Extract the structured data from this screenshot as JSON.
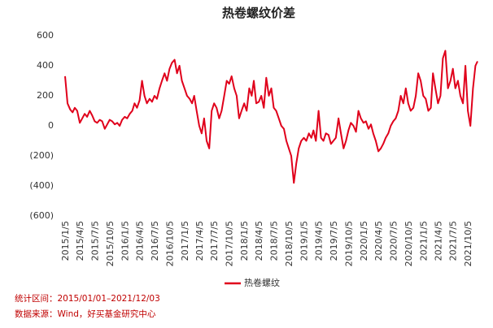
{
  "chart_data": {
    "type": "line",
    "title": "热卷螺纹价差",
    "x": [
      "2015/1/5",
      "2015/1/20",
      "2015/2/5",
      "2015/2/20",
      "2015/3/5",
      "2015/3/20",
      "2015/4/5",
      "2015/4/20",
      "2015/5/5",
      "2015/5/20",
      "2015/6/5",
      "2015/6/20",
      "2015/7/5",
      "2015/7/20",
      "2015/8/5",
      "2015/8/20",
      "2015/9/5",
      "2015/9/20",
      "2015/10/5",
      "2015/10/20",
      "2015/11/5",
      "2015/11/20",
      "2015/12/5",
      "2015/12/20",
      "2016/1/5",
      "2016/1/20",
      "2016/2/5",
      "2016/2/20",
      "2016/3/5",
      "2016/3/20",
      "2016/4/5",
      "2016/4/20",
      "2016/5/5",
      "2016/5/20",
      "2016/6/5",
      "2016/6/20",
      "2016/7/5",
      "2016/7/20",
      "2016/8/5",
      "2016/8/20",
      "2016/9/5",
      "2016/9/20",
      "2016/10/5",
      "2016/10/20",
      "2016/11/5",
      "2016/11/20",
      "2016/12/5",
      "2016/12/20",
      "2017/1/5",
      "2017/1/20",
      "2017/2/5",
      "2017/2/20",
      "2017/3/5",
      "2017/3/20",
      "2017/4/5",
      "2017/4/20",
      "2017/5/5",
      "2017/5/20",
      "2017/6/5",
      "2017/6/20",
      "2017/7/5",
      "2017/7/20",
      "2017/8/5",
      "2017/8/20",
      "2017/9/5",
      "2017/9/20",
      "2017/10/5",
      "2017/10/20",
      "2017/11/5",
      "2017/11/20",
      "2017/12/5",
      "2017/12/20",
      "2018/1/5",
      "2018/1/20",
      "2018/2/5",
      "2018/2/20",
      "2018/3/5",
      "2018/3/20",
      "2018/4/5",
      "2018/4/20",
      "2018/5/5",
      "2018/5/20",
      "2018/6/5",
      "2018/6/20",
      "2018/7/5",
      "2018/7/20",
      "2018/8/5",
      "2018/8/20",
      "2018/9/5",
      "2018/9/20",
      "2018/10/5",
      "2018/10/20",
      "2018/11/5",
      "2018/11/20",
      "2018/12/5",
      "2018/12/20",
      "2019/1/5",
      "2019/1/20",
      "2019/2/5",
      "2019/2/20",
      "2019/3/5",
      "2019/3/20",
      "2019/4/5",
      "2019/4/20",
      "2019/5/5",
      "2019/5/20",
      "2019/6/5",
      "2019/6/20",
      "2019/7/5",
      "2019/7/20",
      "2019/8/5",
      "2019/8/20",
      "2019/9/5",
      "2019/9/20",
      "2019/10/5",
      "2019/10/20",
      "2019/11/5",
      "2019/11/20",
      "2019/12/5",
      "2019/12/20",
      "2020/1/5",
      "2020/1/20",
      "2020/2/5",
      "2020/2/20",
      "2020/3/5",
      "2020/3/20",
      "2020/4/5",
      "2020/4/20",
      "2020/5/5",
      "2020/5/20",
      "2020/6/5",
      "2020/6/20",
      "2020/7/5",
      "2020/7/20",
      "2020/8/5",
      "2020/8/20",
      "2020/9/5",
      "2020/9/20",
      "2020/10/5",
      "2020/10/20",
      "2020/11/5",
      "2020/11/20",
      "2020/12/5",
      "2020/12/20",
      "2021/1/5",
      "2021/1/20",
      "2021/2/5",
      "2021/2/20",
      "2021/3/5",
      "2021/3/20",
      "2021/4/5",
      "2021/4/20",
      "2021/5/5",
      "2021/5/20",
      "2021/6/5",
      "2021/6/20",
      "2021/7/5",
      "2021/7/20",
      "2021/8/5",
      "2021/8/20",
      "2021/9/5",
      "2021/9/20",
      "2021/10/5",
      "2021/10/20",
      "2021/11/5",
      "2021/11/20",
      "2021/12/3"
    ],
    "series": [
      {
        "name": "热卷螺纹",
        "color": "#e0001b",
        "values": [
          330,
          150,
          110,
          90,
          120,
          100,
          20,
          50,
          80,
          60,
          100,
          70,
          30,
          20,
          40,
          30,
          -20,
          10,
          40,
          30,
          10,
          20,
          0,
          40,
          60,
          50,
          80,
          100,
          150,
          120,
          170,
          300,
          200,
          150,
          180,
          160,
          200,
          180,
          250,
          300,
          350,
          300,
          380,
          420,
          440,
          350,
          400,
          300,
          250,
          200,
          180,
          150,
          200,
          100,
          0,
          -50,
          50,
          -100,
          -150,
          100,
          150,
          120,
          50,
          100,
          200,
          300,
          280,
          330,
          250,
          200,
          50,
          100,
          150,
          100,
          250,
          200,
          300,
          150,
          160,
          200,
          120,
          320,
          200,
          250,
          120,
          100,
          50,
          0,
          -20,
          -100,
          -150,
          -200,
          -380,
          -250,
          -150,
          -100,
          -80,
          -100,
          -50,
          -80,
          -30,
          -100,
          100,
          -80,
          -100,
          -50,
          -60,
          -120,
          -100,
          -80,
          50,
          -50,
          -150,
          -100,
          -30,
          20,
          0,
          -40,
          100,
          50,
          20,
          30,
          -20,
          10,
          -50,
          -100,
          -170,
          -150,
          -120,
          -80,
          -50,
          0,
          30,
          50,
          100,
          200,
          150,
          250,
          150,
          100,
          120,
          200,
          350,
          300,
          200,
          180,
          100,
          120,
          350,
          250,
          150,
          200,
          450,
          500,
          250,
          300,
          380,
          250,
          300,
          200,
          150,
          400,
          100,
          0,
          250,
          400,
          430
        ]
      }
    ],
    "xlim": [
      "2015/1/5",
      "2021/12/3"
    ],
    "xticks": [
      "2015/1/5",
      "2015/4/5",
      "2015/7/5",
      "2015/10/5",
      "2016/1/5",
      "2016/4/5",
      "2016/7/5",
      "2016/10/5",
      "2017/1/5",
      "2017/4/5",
      "2017/7/5",
      "2017/10/5",
      "2018/1/5",
      "2018/4/5",
      "2018/7/5",
      "2018/10/5",
      "2019/1/5",
      "2019/4/5",
      "2019/7/5",
      "2019/10/5",
      "2020/1/5",
      "2020/4/5",
      "2020/7/5",
      "2020/10/5",
      "2021/1/5",
      "2021/4/5",
      "2021/7/5",
      "2021/10/5"
    ],
    "ylim": [
      -600,
      600
    ],
    "yticks": [
      {
        "value": -600,
        "label": "(600)"
      },
      {
        "value": -400,
        "label": "(400)"
      },
      {
        "value": -200,
        "label": "(200)"
      },
      0,
      200,
      400,
      600
    ],
    "grid": false,
    "legend": "bottom",
    "notes": [
      "统计区间：2015/01/01–2021/12/03",
      "数据来源：Wind，好买基金研究中心"
    ]
  }
}
